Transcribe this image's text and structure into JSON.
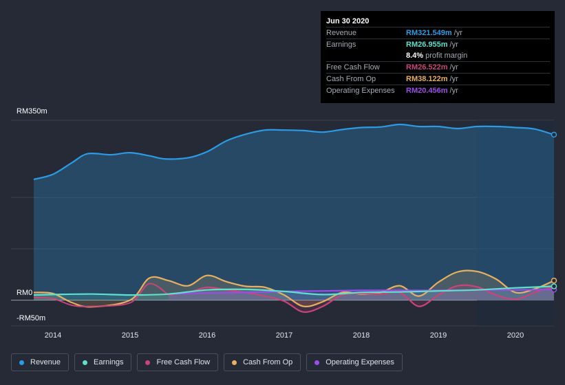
{
  "chart_data": {
    "type": "line",
    "x_ticks": [
      "2014",
      "2015",
      "2016",
      "2017",
      "2018",
      "2019",
      "2020"
    ],
    "y_ticks": [
      "RM350m",
      "RM0",
      "-RM50m"
    ],
    "ylim": [
      -50,
      350
    ],
    "series": [
      {
        "name": "Revenue",
        "color": "#2d9be3",
        "x": [
          2013.75,
          2014.0,
          2014.25,
          2014.45,
          2014.75,
          2015.0,
          2015.25,
          2015.45,
          2015.75,
          2016.0,
          2016.25,
          2016.5,
          2016.75,
          2017.0,
          2017.25,
          2017.5,
          2017.75,
          2018.0,
          2018.25,
          2018.5,
          2018.75,
          2019.0,
          2019.25,
          2019.5,
          2019.75,
          2020.0,
          2020.25,
          2020.5
        ],
        "values": [
          235,
          245,
          268,
          285,
          283,
          287,
          281,
          275,
          277,
          289,
          310,
          323,
          331,
          331,
          330,
          327,
          332,
          336,
          337,
          342,
          338,
          338,
          334,
          338,
          338,
          336,
          333,
          322
        ]
      },
      {
        "name": "Earnings",
        "color": "#5fe0cd",
        "x": [
          2013.75,
          2014.0,
          2014.5,
          2015.0,
          2015.5,
          2016.0,
          2016.5,
          2017.0,
          2017.5,
          2018.0,
          2018.5,
          2019.0,
          2019.5,
          2020.0,
          2020.5
        ],
        "values": [
          10,
          11,
          12,
          10,
          12,
          20,
          21,
          17,
          11,
          15,
          16,
          18,
          20,
          24,
          27
        ]
      },
      {
        "name": "Free Cash Flow",
        "color": "#c8457a",
        "x": [
          2015.5,
          2015.75,
          2016.0,
          2016.25,
          2016.5,
          2016.75,
          2017.0,
          2017.25,
          2017.5,
          2017.75,
          2018.0,
          2018.25,
          2018.5,
          2018.75,
          2019.0,
          2019.25,
          2019.5,
          2019.75,
          2020.0,
          2020.25,
          2020.5
        ],
        "values": [
          10,
          15,
          25,
          20,
          15,
          8,
          -2,
          -23,
          -12,
          10,
          13,
          12,
          15,
          -12,
          10,
          28,
          26,
          10,
          2,
          15,
          26.5
        ],
        "pre": {
          "x": [
            2013.75,
            2014.0,
            2014.25,
            2014.5,
            2015.0,
            2015.25,
            2015.5
          ],
          "values": [
            5,
            3,
            -10,
            -12,
            -5,
            32,
            10
          ]
        }
      },
      {
        "name": "Cash From Op",
        "color": "#e8b062",
        "x": [
          2013.75,
          2014.0,
          2014.25,
          2014.5,
          2015.0,
          2015.25,
          2015.5,
          2015.75,
          2016.0,
          2016.25,
          2016.5,
          2016.75,
          2017.0,
          2017.25,
          2017.5,
          2017.75,
          2018.0,
          2018.25,
          2018.5,
          2018.75,
          2019.0,
          2019.25,
          2019.5,
          2019.75,
          2020.0,
          2020.25,
          2020.5
        ],
        "values": [
          15,
          13,
          -5,
          -13,
          0,
          43,
          38,
          28,
          48,
          36,
          27,
          25,
          10,
          -12,
          -3,
          15,
          12,
          15,
          28,
          8,
          35,
          55,
          56,
          41,
          15,
          22,
          38.1
        ]
      },
      {
        "name": "Operating Expenses",
        "color": "#9b4de8",
        "x": [
          2015.5,
          2016.0,
          2016.5,
          2017.0,
          2017.5,
          2018.0,
          2018.5,
          2019.0,
          2019.5,
          2020.0,
          2020.5
        ],
        "values": [
          12,
          14,
          15,
          17,
          18,
          19,
          19,
          19,
          20,
          20,
          20.5
        ]
      }
    ],
    "highlight_from": 2019.5
  },
  "tooltip": {
    "date": "Jun 30 2020",
    "rows": [
      {
        "name": "Revenue",
        "value": "RM321.549m",
        "unit": "/yr",
        "color": "#2d9be3"
      },
      {
        "name": "Earnings",
        "value": "RM26.955m",
        "unit": "/yr",
        "color": "#5fe0cd"
      },
      {
        "name": "",
        "value": "8.4%",
        "unit": "profit margin",
        "color": "#ffffff"
      },
      {
        "name": "Free Cash Flow",
        "value": "RM26.522m",
        "unit": "/yr",
        "color": "#c8457a"
      },
      {
        "name": "Cash From Op",
        "value": "RM38.122m",
        "unit": "/yr",
        "color": "#e8b062"
      },
      {
        "name": "Operating Expenses",
        "value": "RM20.456m",
        "unit": "/yr",
        "color": "#9b4de8"
      }
    ]
  },
  "legend": [
    {
      "label": "Revenue",
      "color": "#2d9be3"
    },
    {
      "label": "Earnings",
      "color": "#5fe0cd"
    },
    {
      "label": "Free Cash Flow",
      "color": "#c8457a"
    },
    {
      "label": "Cash From Op",
      "color": "#e8b062"
    },
    {
      "label": "Operating Expenses",
      "color": "#9b4de8"
    }
  ]
}
